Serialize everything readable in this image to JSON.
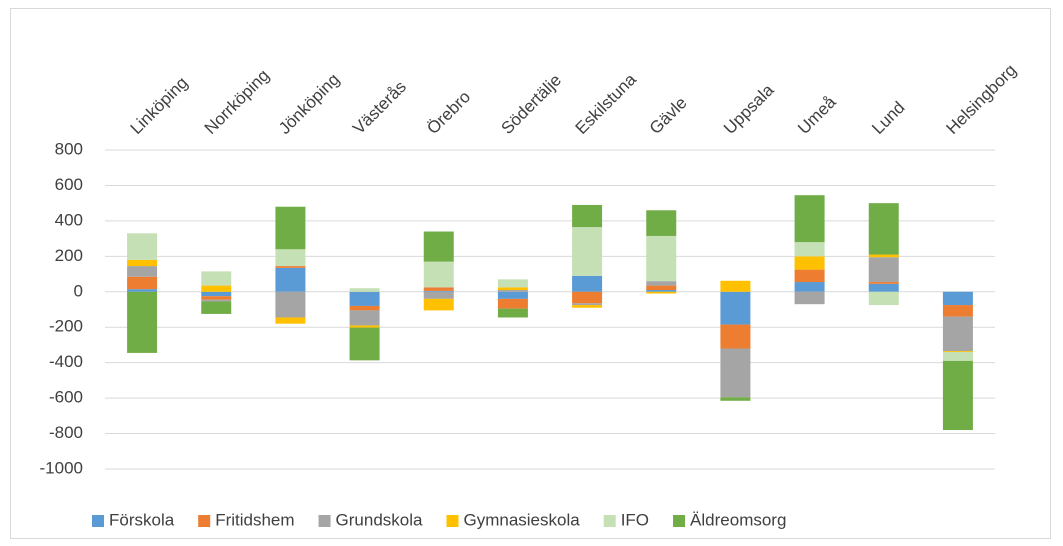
{
  "chart_data": {
    "type": "bar",
    "stacked": true,
    "categories": [
      "Linköping",
      "Norrköping",
      "Jönköping",
      "Västerås",
      "Örebro",
      "Södertälje",
      "Eskilstuna",
      "Gävle",
      "Uppsala",
      "Umeå",
      "Lund",
      "Helsingborg"
    ],
    "series": [
      {
        "name": "Förskola",
        "color": "#5b9bd5",
        "values": [
          15,
          -25,
          135,
          -80,
          5,
          -40,
          90,
          10,
          -185,
          55,
          45,
          -75
        ]
      },
      {
        "name": "Fritidshem",
        "color": "#ed7d31",
        "values": [
          70,
          -20,
          10,
          -25,
          20,
          -55,
          -65,
          25,
          -135,
          70,
          10,
          -65
        ]
      },
      {
        "name": "Grundskola",
        "color": "#a5a5a5",
        "values": [
          60,
          -10,
          -145,
          -85,
          -40,
          10,
          -10,
          25,
          -275,
          -70,
          140,
          -195
        ]
      },
      {
        "name": "Gymnasieskola",
        "color": "#ffc000",
        "values": [
          35,
          35,
          -35,
          -12,
          -65,
          15,
          -15,
          -10,
          62,
          75,
          15,
          -5
        ]
      },
      {
        "name": "IFO",
        "color": "#c5e0b4",
        "values": [
          150,
          80,
          95,
          20,
          145,
          45,
          275,
          255,
          0,
          80,
          -75,
          -50
        ]
      },
      {
        "name": "Äldreomsorg",
        "color": "#70ad47",
        "values": [
          -345,
          -70,
          240,
          -185,
          170,
          -50,
          125,
          145,
          -20,
          265,
          290,
          -390
        ]
      }
    ],
    "ylim": [
      -1000,
      800
    ],
    "yticks": [
      -1000,
      -800,
      -600,
      -400,
      -200,
      0,
      200,
      400,
      600,
      800
    ],
    "grid": true,
    "legend": "bottom"
  }
}
